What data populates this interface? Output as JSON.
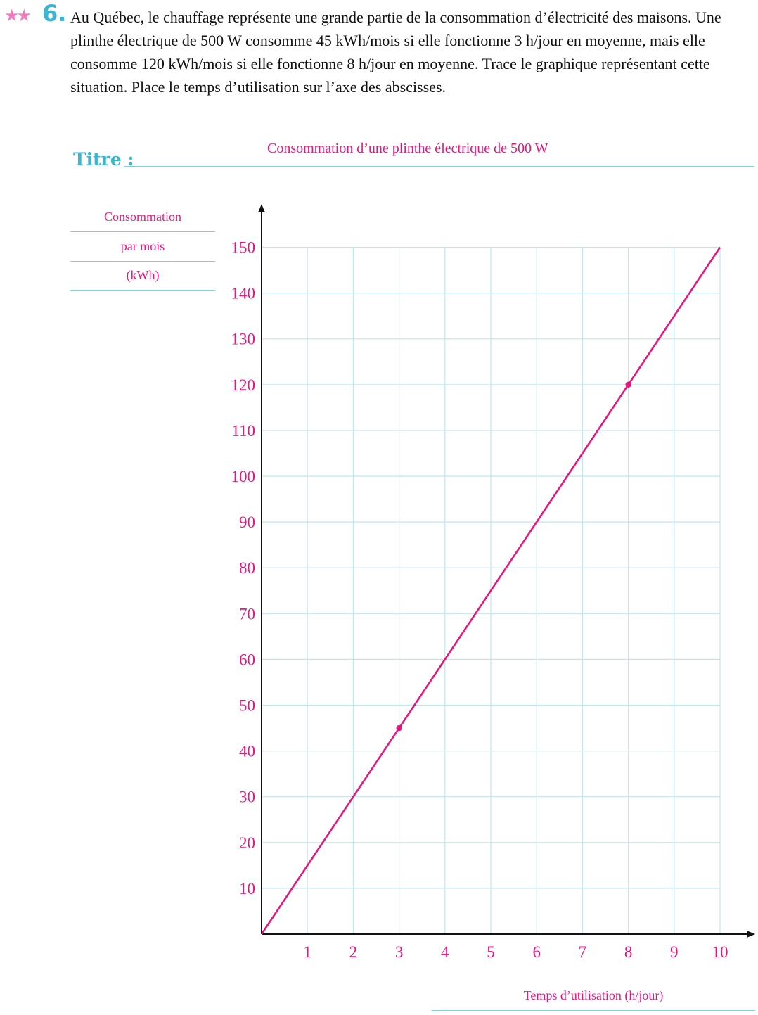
{
  "exercise": {
    "stars": "★★",
    "number": "6.",
    "statement": "Au Québec, le chauffage représente une grande partie de la consommation d’électricité des maisons. Une plinthe électrique de 500 W consomme 45 kWh/mois si elle fonctionne 3 h/jour en moyenne, mais elle consomme 120 kWh/mois si elle fonctionne 8 h/jour en moyenne. Trace le graphique représentant cette situation. Place le temps d’utilisation sur l’axe des abscisses.",
    "title_label": "Titre :"
  },
  "colors": {
    "accent": "#3ab6d3",
    "answer": "#e5167f",
    "grid": "#bfe6f2",
    "stars": "#f07cbf"
  },
  "chart_data": {
    "type": "line",
    "title": "Consommation d’une plinthe électrique de 500 W",
    "ylabel_lines": [
      "Consommation",
      "par mois",
      "(kWh)"
    ],
    "xlabel": "Temps d’utilisation (h/jour)",
    "xlim": [
      0,
      10
    ],
    "ylim": [
      0,
      150
    ],
    "xticks": [
      1,
      2,
      3,
      4,
      5,
      6,
      7,
      8,
      9,
      10
    ],
    "yticks": [
      10,
      20,
      30,
      40,
      50,
      60,
      70,
      80,
      90,
      100,
      110,
      120,
      130,
      140,
      150
    ],
    "grid": true,
    "series": [
      {
        "x": [
          0,
          10
        ],
        "y": [
          0,
          150
        ]
      }
    ],
    "points": [
      {
        "x": 3,
        "y": 45
      },
      {
        "x": 8,
        "y": 120
      }
    ]
  }
}
